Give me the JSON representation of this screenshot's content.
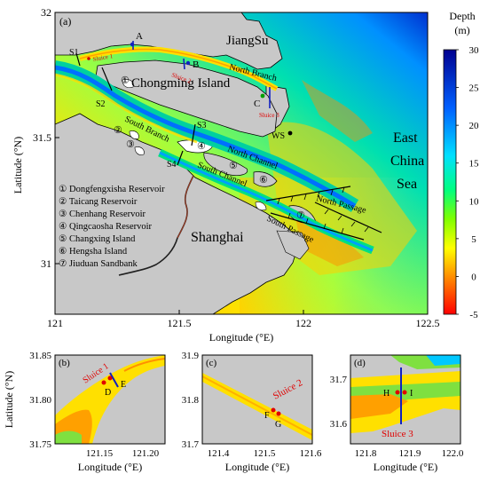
{
  "main": {
    "panel_label": "(a)",
    "y_ticks": [
      "32",
      "31.5",
      "31"
    ],
    "x_ticks": [
      "121",
      "121.5",
      "122",
      "122.5"
    ],
    "ylabel": "Latitude (°N)",
    "xlabel": "Longitude (°E)",
    "regions": {
      "jiangsu": "JiangSu",
      "chongming": "Chongming Island",
      "shanghai": "Shanghai",
      "east_china_sea": [
        "East",
        "China",
        "Sea"
      ]
    },
    "channels": {
      "north_branch": "North Branch",
      "south_branch": "South Branch",
      "north_channel": "North Channel",
      "south_channel": "South Channel",
      "north_passage": "North Passage",
      "south_passage": "South Passage"
    },
    "stations": {
      "a": "A",
      "b": "B",
      "c": "C",
      "ws": "WS",
      "s1": "S1",
      "s2": "S2",
      "s3": "S3",
      "s4": "S4"
    },
    "sluices": {
      "sluice1": "Sluice 1",
      "sluice2": "Sluice 2",
      "sluice3": "Sluice 3"
    },
    "numbers": [
      "①",
      "②",
      "③",
      "④",
      "⑤",
      "⑥",
      "⑦"
    ],
    "legend_items": [
      "① Dongfengxisha Reservoir",
      "② Taicang Reservoir",
      "③ Chenhang Reservoir",
      "④ Qingcaosha Reservoir",
      "⑤ Changxing Island",
      "⑥ Hengsha Island",
      "⑦ Jiuduan Sandbank"
    ]
  },
  "colorbar": {
    "title_line1": "Depth",
    "title_line2": "(m)",
    "ticks": [
      "30",
      "25",
      "20",
      "15",
      "10",
      "5",
      "0",
      "-5"
    ],
    "range": [
      -5,
      30
    ],
    "colors": [
      "#ff0000",
      "#ff8c00",
      "#ffff00",
      "#7fff00",
      "#00ff7f",
      "#00e0ff",
      "#0060ff",
      "#000090"
    ]
  },
  "panel_b": {
    "label": "(b)",
    "y_ticks": [
      "31.85",
      "31.80",
      "31.75"
    ],
    "x_ticks": [
      "121.15",
      "121.20"
    ],
    "ylabel": "Latitude (°N)",
    "xlabel": "Longitude (°E)",
    "sluice": "Sluice 1",
    "points": [
      "D",
      "E"
    ]
  },
  "panel_c": {
    "label": "(c)",
    "y_ticks": [
      "31.9",
      "31.8",
      "31.7"
    ],
    "x_ticks": [
      "121.4",
      "121.5",
      "121.6"
    ],
    "xlabel": "Longitude (°E)",
    "sluice": "Sluice 2",
    "points": [
      "F",
      "G"
    ]
  },
  "panel_d": {
    "label": "(d)",
    "y_ticks": [
      "31.7",
      "31.6"
    ],
    "x_ticks": [
      "121.8",
      "121.9",
      "122.0"
    ],
    "xlabel": "Longitude (°E)",
    "sluice": "Sluice 3",
    "points": [
      "H",
      "I"
    ]
  }
}
